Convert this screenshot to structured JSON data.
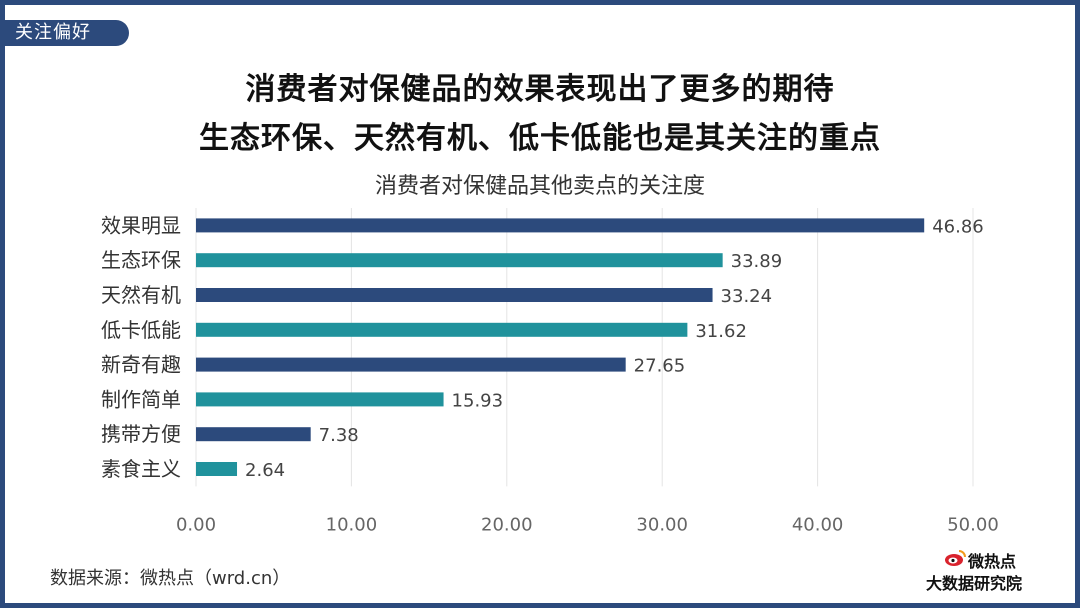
{
  "badge": "关注偏好",
  "headline": {
    "line1": "消费者对保健品的效果表现出了更多的期待",
    "line2": "生态环保、天然有机、低卡低能也是其关注的重点"
  },
  "source": "数据来源：微热点（wrd.cn）",
  "logo": {
    "line1": "微热点",
    "line2": "大数据研究院"
  },
  "colors": {
    "frame": "#2c4a7c",
    "series_a": "#2c4a7c",
    "series_b": "#20929c",
    "grid": "#e4e4e4"
  },
  "chart_data": {
    "type": "bar",
    "orientation": "horizontal",
    "title": "消费者对保健品其他卖点的关注度",
    "categories": [
      "效果明显",
      "生态环保",
      "天然有机",
      "低卡低能",
      "新奇有趣",
      "制作简单",
      "携带方便",
      "素食主义"
    ],
    "values": [
      46.86,
      33.89,
      33.24,
      31.62,
      27.65,
      15.93,
      7.38,
      2.64
    ],
    "value_labels": [
      "46.86",
      "33.89",
      "33.24",
      "31.62",
      "27.65",
      "15.93",
      "7.38",
      "2.64"
    ],
    "xlim": [
      0,
      50
    ],
    "xticks": [
      "0.00",
      "10.00",
      "20.00",
      "30.00",
      "40.00",
      "50.00"
    ],
    "xlabel": "",
    "ylabel": "",
    "grid": true,
    "legend": "none"
  }
}
